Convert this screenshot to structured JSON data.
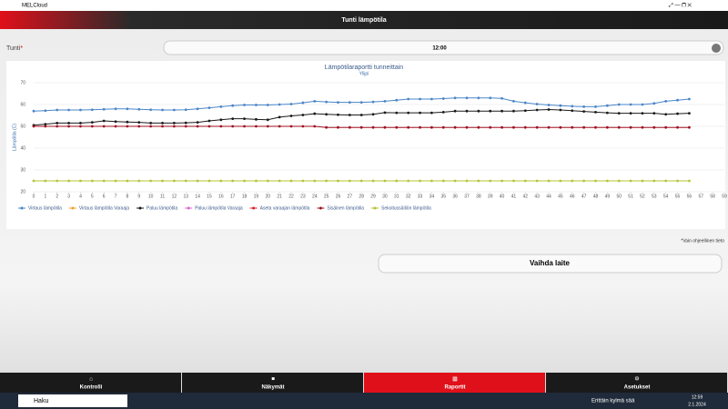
{
  "window": {
    "title": "MELCloud"
  },
  "header": {
    "title": "Tunti lämpötila"
  },
  "form": {
    "label": "Tunti",
    "required": "*",
    "selected": "12:00"
  },
  "chart_data": {
    "type": "line",
    "title": "Lämpötilaraportti tunneittain",
    "subtitle": "Ylijpi",
    "y_label": "Lämpötila (C)",
    "x": [
      0,
      1,
      2,
      3,
      4,
      5,
      6,
      7,
      8,
      9,
      10,
      11,
      12,
      13,
      14,
      15,
      16,
      17,
      18,
      19,
      20,
      21,
      22,
      23,
      24,
      25,
      26,
      27,
      28,
      29,
      30,
      31,
      32,
      33,
      34,
      35,
      36,
      37,
      38,
      39,
      40,
      41,
      42,
      43,
      44,
      45,
      46,
      47,
      48,
      49,
      50,
      51,
      52,
      53,
      54,
      55,
      56
    ],
    "xlim": [
      0,
      59
    ],
    "xticks": [
      0,
      1,
      2,
      3,
      4,
      5,
      6,
      7,
      8,
      9,
      10,
      11,
      12,
      13,
      14,
      15,
      16,
      17,
      18,
      19,
      20,
      21,
      22,
      23,
      24,
      25,
      26,
      27,
      28,
      29,
      30,
      31,
      32,
      33,
      34,
      35,
      36,
      37,
      38,
      39,
      40,
      41,
      42,
      43,
      44,
      45,
      46,
      47,
      48,
      49,
      50,
      51,
      52,
      53,
      54,
      55,
      56,
      57,
      58,
      59
    ],
    "ylim": [
      20,
      70
    ],
    "yticks": [
      20,
      30,
      40,
      50,
      60,
      70
    ],
    "grid": true,
    "series": [
      {
        "name": "Virtaus lämpötila",
        "color": "#4a86c8",
        "values": [
          57,
          57.2,
          57.5,
          57.5,
          57.5,
          57.6,
          57.8,
          58,
          58,
          57.8,
          57.6,
          57.5,
          57.5,
          57.6,
          58,
          58.5,
          59,
          59.5,
          59.8,
          59.8,
          59.8,
          60,
          60.2,
          60.8,
          61.5,
          61.2,
          61,
          61,
          61,
          61.2,
          61.5,
          62,
          62.5,
          62.5,
          62.5,
          62.7,
          63,
          63,
          63,
          63,
          62.8,
          61.5,
          60.8,
          60.2,
          59.8,
          59.5,
          59.2,
          59,
          59,
          59.5,
          60,
          60,
          60,
          60.5,
          61.5,
          62,
          62.5
        ]
      },
      {
        "name": "Virtaus lämpötila Varaaja",
        "color": "#f0a030",
        "values": [
          null,
          null,
          null,
          null,
          null,
          null,
          null,
          null,
          null,
          null,
          null,
          null,
          null,
          null,
          null,
          null,
          null,
          null,
          null,
          null,
          null,
          null,
          null,
          null,
          null,
          null,
          null,
          null,
          null,
          null,
          null,
          null,
          null,
          null,
          null,
          null,
          null,
          null,
          null,
          null,
          null,
          null,
          null,
          null,
          null,
          null,
          null,
          null,
          null,
          null,
          null,
          null,
          null,
          null,
          null,
          null,
          null
        ]
      },
      {
        "name": "Paluu lämpötila",
        "color": "#1a1a1a",
        "values": [
          50.5,
          51,
          51.5,
          51.5,
          51.5,
          51.8,
          52.5,
          52.2,
          52,
          51.8,
          51.5,
          51.5,
          51.5,
          51.6,
          51.8,
          52.5,
          53,
          53.5,
          53.5,
          53.2,
          53,
          54.2,
          54.8,
          55.2,
          55.8,
          55.5,
          55.3,
          55.2,
          55.2,
          55.5,
          56.3,
          56.2,
          56.2,
          56.2,
          56.2,
          56.5,
          57,
          57,
          57,
          57,
          57,
          57,
          57.2,
          57.5,
          57.7,
          57.5,
          57.2,
          56.8,
          56.5,
          56.2,
          56,
          56,
          56,
          56,
          55.5,
          55.8,
          56
        ]
      },
      {
        "name": "Paluu lämpötila Varaaja",
        "color": "#e060d0",
        "values": [
          null,
          null,
          null,
          null,
          null,
          null,
          null,
          null,
          null,
          null,
          null,
          null,
          null,
          null,
          null,
          null,
          null,
          null,
          null,
          null,
          null,
          null,
          null,
          null,
          null,
          null,
          null,
          null,
          null,
          null,
          null,
          null,
          null,
          null,
          null,
          null,
          null,
          null,
          null,
          null,
          null,
          null,
          null,
          null,
          null,
          null,
          null,
          null,
          null,
          null,
          null,
          null,
          null,
          null,
          null,
          null,
          null
        ]
      },
      {
        "name": "Aseta varaajan lämpötila",
        "color": "#e02030",
        "values": [
          null,
          null,
          null,
          null,
          null,
          null,
          null,
          null,
          null,
          null,
          null,
          null,
          null,
          null,
          null,
          null,
          null,
          null,
          null,
          null,
          null,
          null,
          null,
          null,
          null,
          null,
          null,
          null,
          null,
          null,
          null,
          null,
          null,
          null,
          null,
          null,
          null,
          null,
          null,
          null,
          null,
          null,
          null,
          null,
          null,
          null,
          null,
          null,
          null,
          null,
          null,
          null,
          null,
          null,
          null,
          null,
          null
        ]
      },
      {
        "name": "Sisäinen lämpötila",
        "color": "#a01020",
        "values": [
          50,
          50,
          50,
          50,
          50,
          50,
          50,
          50,
          50,
          50,
          50,
          50,
          50,
          50,
          50,
          50,
          50,
          50,
          50,
          50,
          50,
          50,
          50,
          50,
          50,
          49.5,
          49.5,
          49.5,
          49.5,
          49.5,
          49.5,
          49.5,
          49.5,
          49.5,
          49.5,
          49.5,
          49.5,
          49.5,
          49.5,
          49.5,
          49.5,
          49.5,
          49.5,
          49.5,
          49.5,
          49.5,
          49.5,
          49.5,
          49.5,
          49.5,
          49.5,
          49.5,
          49.5,
          49.5,
          49.5,
          49.5,
          49.5
        ]
      },
      {
        "name": "Sekoitussäiliön lämpötila",
        "color": "#b5c334",
        "values": [
          25,
          25,
          25,
          25,
          25,
          25,
          25,
          25,
          25,
          25,
          25,
          25,
          25,
          25,
          25,
          25,
          25,
          25,
          25,
          25,
          25,
          25,
          25,
          25,
          25,
          25,
          25,
          25,
          25,
          25,
          25,
          25,
          25,
          25,
          25,
          25,
          25,
          25,
          25,
          25,
          25,
          25,
          25,
          25,
          25,
          25,
          25,
          25,
          25,
          25,
          25,
          25,
          25,
          25,
          25,
          25,
          25
        ]
      }
    ]
  },
  "note": "*Vain ohjeellinen tieto",
  "button": "Vaihda laite",
  "nav": {
    "items": [
      "Kontrolli",
      "Näkymät",
      "Raportit",
      "Asetukset"
    ],
    "active": 2
  },
  "taskbar": {
    "search": "Haku",
    "weather": "Erittäin kylmä sää",
    "time": "12:59",
    "date": "2.1.2024"
  }
}
